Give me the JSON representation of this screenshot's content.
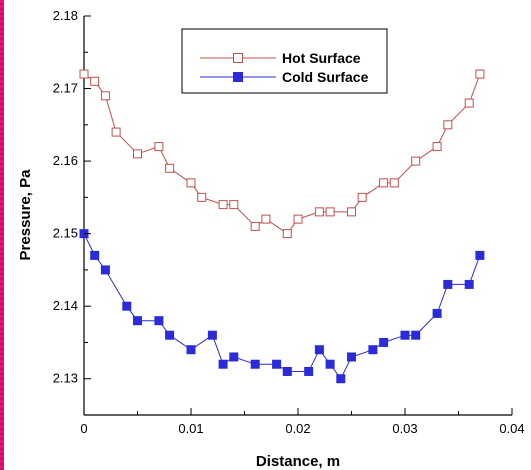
{
  "chart_data": {
    "type": "line",
    "title": "",
    "xlabel": "Distance, m",
    "ylabel": "Pressure, Pa",
    "xlim": [
      0,
      0.04
    ],
    "ylim": [
      2.125,
      2.18
    ],
    "x_ticks": [
      "0",
      "0.01",
      "0.02",
      "0.03",
      "0.04"
    ],
    "y_ticks": [
      "2.13",
      "2.14",
      "2.15",
      "2.16",
      "2.17",
      "2.18"
    ],
    "x_tick_values": [
      0,
      0.01,
      0.02,
      0.03,
      0.04
    ],
    "y_tick_values": [
      2.13,
      2.14,
      2.15,
      2.16,
      2.17,
      2.18
    ],
    "grid": false,
    "legend_position": "top-center",
    "series": [
      {
        "name": "Hot Surface",
        "color": "#c0504d",
        "marker": "open-square",
        "x": [
          0,
          0.001,
          0.002,
          0.003,
          0.005,
          0.007,
          0.008,
          0.01,
          0.011,
          0.013,
          0.014,
          0.016,
          0.017,
          0.019,
          0.02,
          0.022,
          0.023,
          0.025,
          0.026,
          0.028,
          0.029,
          0.031,
          0.033,
          0.034,
          0.036,
          0.037
        ],
        "y": [
          2.172,
          2.171,
          2.169,
          2.164,
          2.161,
          2.162,
          2.159,
          2.157,
          2.155,
          2.154,
          2.154,
          2.151,
          2.152,
          2.15,
          2.152,
          2.153,
          2.153,
          2.153,
          2.155,
          2.157,
          2.157,
          2.16,
          2.162,
          2.165,
          2.168,
          2.172
        ]
      },
      {
        "name": "Cold Surface",
        "color": "#2b2bd9",
        "marker": "filled-square",
        "x": [
          0,
          0.001,
          0.002,
          0.004,
          0.005,
          0.007,
          0.008,
          0.01,
          0.012,
          0.013,
          0.014,
          0.016,
          0.018,
          0.019,
          0.021,
          0.022,
          0.023,
          0.024,
          0.025,
          0.027,
          0.028,
          0.03,
          0.031,
          0.033,
          0.034,
          0.036,
          0.037
        ],
        "y": [
          2.15,
          2.147,
          2.145,
          2.14,
          2.138,
          2.138,
          2.136,
          2.134,
          2.136,
          2.132,
          2.133,
          2.132,
          2.132,
          2.131,
          2.131,
          2.134,
          2.132,
          2.13,
          2.133,
          2.134,
          2.135,
          2.136,
          2.136,
          2.139,
          2.143,
          2.143,
          2.147
        ]
      }
    ]
  }
}
